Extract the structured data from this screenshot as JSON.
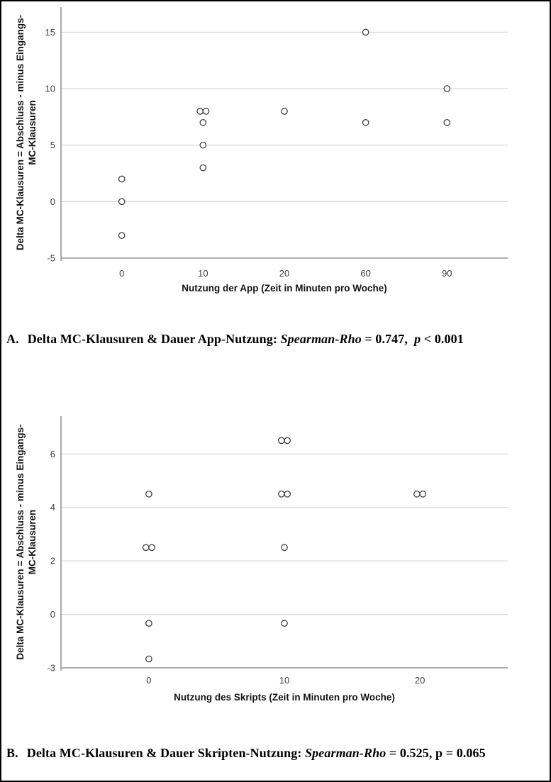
{
  "page": {
    "background": "#ffffff",
    "frame_color": "#000000"
  },
  "style": {
    "grid_color": "#cfcfcf",
    "axis_color": "#7f7f7f",
    "tick_label_color": "#3d3d3d",
    "axis_title_color": "#141414",
    "marker_stroke_color": "#3f3f3f",
    "marker_fill_color": "#ffffff",
    "caption_color": "#000000"
  },
  "captions": {
    "caption_a": {
      "prefix": "A.",
      "segments": [
        {
          "text": "Delta MC-Klausuren & Dauer App-Nutzung: ",
          "italic": false
        },
        {
          "text": "Spearman-Rho",
          "italic": true
        },
        {
          "text": " = 0.747,  ",
          "italic": false
        },
        {
          "text": "p",
          "italic": true
        },
        {
          "text": " < 0.001",
          "italic": false
        }
      ]
    },
    "caption_b": {
      "prefix": "B.",
      "segments": [
        {
          "text": "Delta MC-Klausuren & Dauer Skripten-Nutzung: ",
          "italic": false
        },
        {
          "text": "Spearman-Rho",
          "italic": true
        },
        {
          "text": " = 0.525, p = 0.065",
          "italic": false
        }
      ]
    }
  },
  "chart_data": [
    {
      "type": "scatter",
      "panel_label": "A",
      "xlabel": "Nutzung der App (Zeit in Minuten pro Woche)",
      "ylabel_lines": [
        "Delta MC-Klausuren = Abschluss - minus Eingangs-",
        "MC-Klausuren"
      ],
      "x_categories": [
        "0",
        "10",
        "20",
        "60",
        "90"
      ],
      "yticks": [
        -5,
        0,
        5,
        10,
        15
      ],
      "ylim": [
        -5,
        17
      ],
      "grid": "horizontal",
      "legend": "none",
      "marker": "open-circle",
      "groups": [
        {
          "category": "0",
          "values": [
            2,
            0,
            -3
          ]
        },
        {
          "category": "10",
          "values": [
            8,
            8,
            7,
            5,
            3
          ]
        },
        {
          "category": "20",
          "values": [
            8
          ]
        },
        {
          "category": "60",
          "values": [
            15,
            7
          ]
        },
        {
          "category": "90",
          "values": [
            10,
            7
          ]
        }
      ]
    },
    {
      "type": "scatter",
      "panel_label": "B",
      "xlabel": "Nutzung des Skripts (Zeit in Minuten pro Woche)",
      "ylabel_lines": [
        "Delta MC-Klausuren = Abschluss - minus Eingangs-",
        "MC-Klausuren"
      ],
      "x_categories": [
        "0",
        "10",
        "20"
      ],
      "yticks": [
        -3,
        0,
        2,
        4,
        6
      ],
      "ylim": [
        -3,
        7.4
      ],
      "grid": "horizontal",
      "legend": "none",
      "marker": "open-circle",
      "groups": [
        {
          "category": "0",
          "values": [
            4.5,
            2.5,
            2.5,
            -0.5,
            -2.5
          ]
        },
        {
          "category": "10",
          "values": [
            6.5,
            6.5,
            4.5,
            4.5,
            2.5,
            -0.5
          ]
        },
        {
          "category": "20",
          "values": [
            4.5,
            4.5
          ]
        }
      ]
    }
  ]
}
